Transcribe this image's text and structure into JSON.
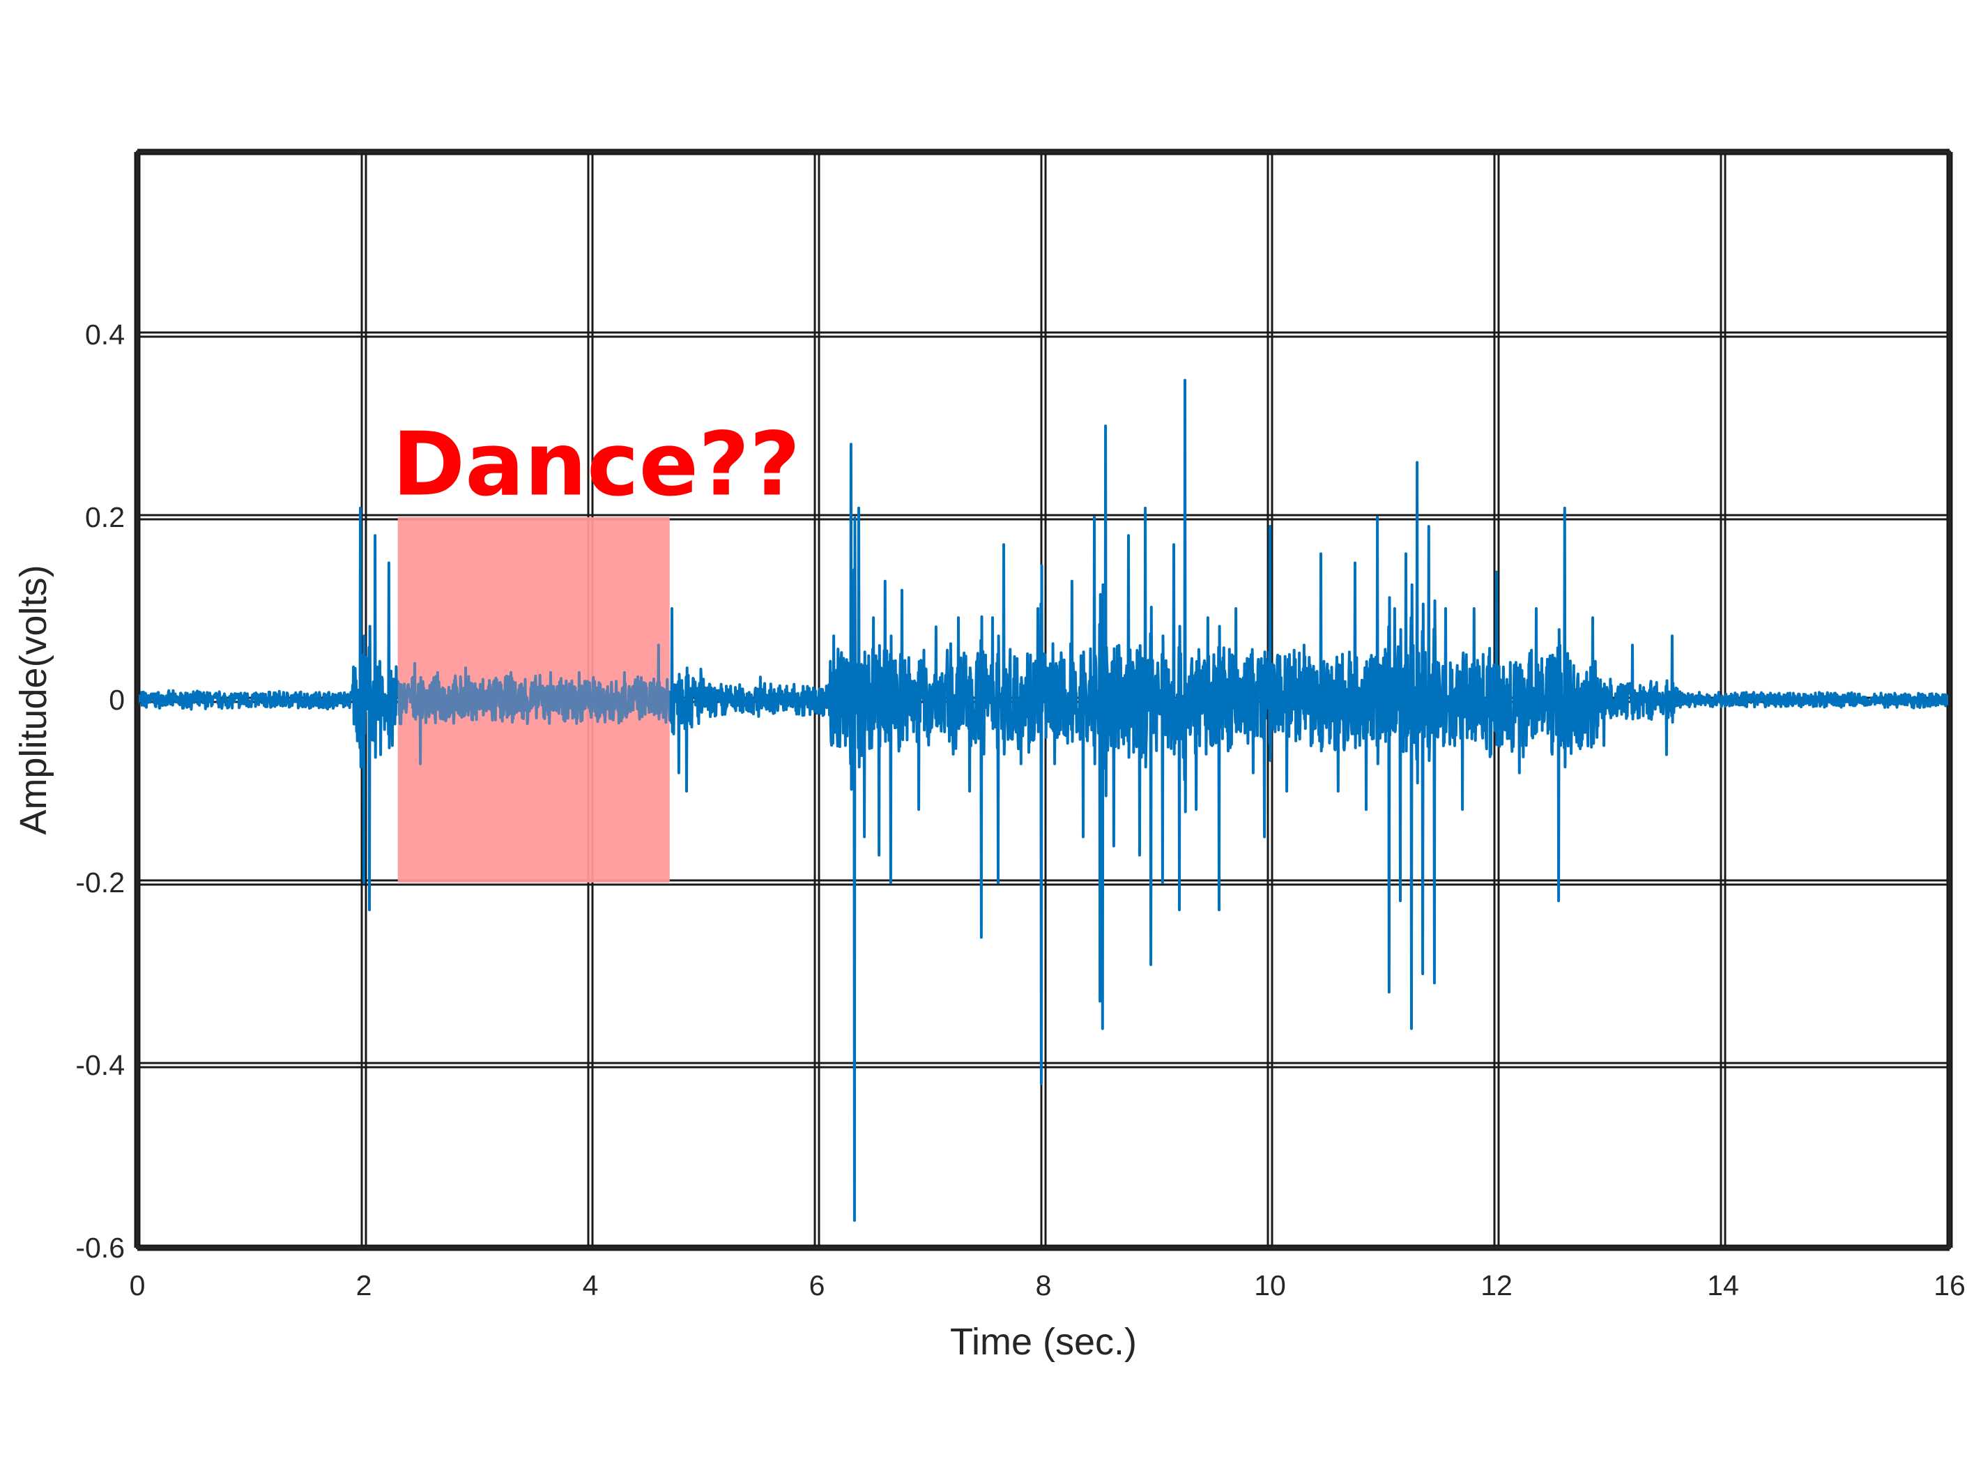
{
  "chart_data": {
    "type": "line",
    "xlabel": "Time (sec.)",
    "ylabel": "Amplitude(volts)",
    "xlim": [
      0,
      16
    ],
    "ylim": [
      -0.6,
      0.6
    ],
    "xticks": [
      0,
      2,
      4,
      6,
      8,
      10,
      12,
      14,
      16
    ],
    "xtick_labels": [
      "0",
      "2",
      "4",
      "6",
      "8",
      "10",
      "12",
      "14",
      "16"
    ],
    "yticks": [
      -0.6,
      -0.4,
      -0.2,
      0,
      0.2,
      0.4
    ],
    "ytick_labels": [
      "-0.6",
      "-0.4",
      "-0.2",
      "0",
      "0.2",
      "0.4"
    ],
    "grid": true,
    "series": [
      {
        "color": "#0072BD",
        "peaks": [
          [
            1.97,
            0.21
          ],
          [
            2.0,
            -0.2
          ],
          [
            2.05,
            -0.23
          ],
          [
            2.1,
            0.18
          ],
          [
            2.15,
            -0.06
          ],
          [
            2.22,
            0.15
          ],
          [
            2.25,
            -0.05
          ],
          [
            2.45,
            0.04
          ],
          [
            2.5,
            -0.07
          ],
          [
            2.65,
            0.03
          ],
          [
            2.9,
            0.035
          ],
          [
            3.3,
            0.03
          ],
          [
            3.65,
            0.03
          ],
          [
            3.9,
            0.03
          ],
          [
            4.3,
            0.03
          ],
          [
            4.6,
            0.06
          ],
          [
            4.72,
            0.1
          ],
          [
            4.78,
            -0.08
          ],
          [
            4.85,
            -0.1
          ],
          [
            5.5,
            0.025
          ],
          [
            6.15,
            0.07
          ],
          [
            6.25,
            -0.05
          ],
          [
            6.3,
            0.28
          ],
          [
            6.33,
            -0.57
          ],
          [
            6.37,
            0.21
          ],
          [
            6.42,
            -0.15
          ],
          [
            6.5,
            0.09
          ],
          [
            6.55,
            -0.17
          ],
          [
            6.6,
            0.13
          ],
          [
            6.65,
            -0.2
          ],
          [
            6.75,
            0.12
          ],
          [
            6.9,
            -0.12
          ],
          [
            7.05,
            0.08
          ],
          [
            7.25,
            0.09
          ],
          [
            7.35,
            -0.1
          ],
          [
            7.45,
            -0.26
          ],
          [
            7.55,
            0.09
          ],
          [
            7.6,
            -0.2
          ],
          [
            7.65,
            0.17
          ],
          [
            7.8,
            -0.07
          ],
          [
            7.95,
            0.1
          ],
          [
            7.98,
            -0.42
          ],
          [
            8.1,
            -0.07
          ],
          [
            8.25,
            0.13
          ],
          [
            8.35,
            -0.15
          ],
          [
            8.45,
            0.2
          ],
          [
            8.5,
            -0.33
          ],
          [
            8.52,
            -0.36
          ],
          [
            8.55,
            0.3
          ],
          [
            8.62,
            -0.16
          ],
          [
            8.75,
            0.18
          ],
          [
            8.85,
            -0.17
          ],
          [
            8.9,
            0.21
          ],
          [
            8.95,
            -0.29
          ],
          [
            9.05,
            -0.2
          ],
          [
            9.15,
            0.17
          ],
          [
            9.2,
            -0.23
          ],
          [
            9.25,
            0.35
          ],
          [
            9.35,
            -0.12
          ],
          [
            9.45,
            0.09
          ],
          [
            9.55,
            -0.23
          ],
          [
            9.7,
            0.1
          ],
          [
            9.85,
            -0.08
          ],
          [
            9.95,
            -0.15
          ],
          [
            10.0,
            0.19
          ],
          [
            10.15,
            -0.1
          ],
          [
            10.3,
            0.06
          ],
          [
            10.45,
            0.16
          ],
          [
            10.6,
            -0.1
          ],
          [
            10.75,
            0.15
          ],
          [
            10.85,
            -0.12
          ],
          [
            10.95,
            0.2
          ],
          [
            11.05,
            -0.32
          ],
          [
            11.1,
            0.1
          ],
          [
            11.15,
            -0.22
          ],
          [
            11.2,
            0.16
          ],
          [
            11.25,
            -0.36
          ],
          [
            11.3,
            0.26
          ],
          [
            11.35,
            -0.3
          ],
          [
            11.4,
            0.19
          ],
          [
            11.45,
            -0.31
          ],
          [
            11.55,
            0.1
          ],
          [
            11.7,
            -0.12
          ],
          [
            11.8,
            0.1
          ],
          [
            12.0,
            0.14
          ],
          [
            12.2,
            -0.08
          ],
          [
            12.35,
            0.1
          ],
          [
            12.55,
            -0.22
          ],
          [
            12.6,
            0.21
          ],
          [
            12.75,
            -0.05
          ],
          [
            12.85,
            0.09
          ],
          [
            12.95,
            -0.05
          ],
          [
            13.2,
            0.06
          ],
          [
            13.25,
            -0.02
          ],
          [
            13.5,
            -0.06
          ],
          [
            13.55,
            0.07
          ]
        ]
      }
    ],
    "annotations": [
      {
        "text": "Dance??",
        "color": "#FF0000",
        "x": 2.25,
        "y": 0.225
      }
    ],
    "highlight_region": {
      "x": [
        2.3,
        4.7
      ],
      "y": [
        -0.2,
        0.2
      ],
      "color": "#FF9999"
    }
  }
}
